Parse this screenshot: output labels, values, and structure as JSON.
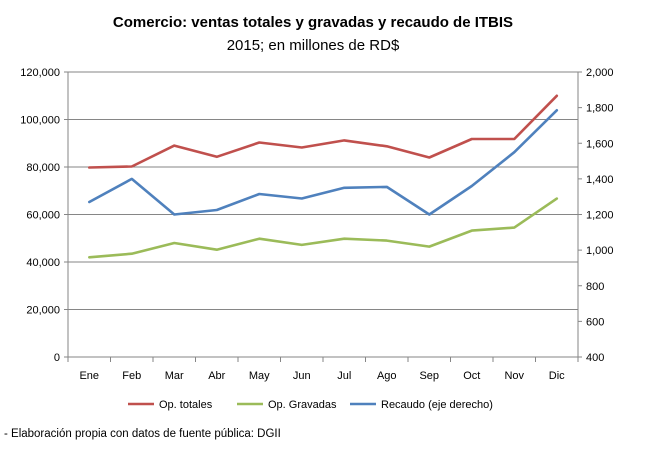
{
  "chart_data": {
    "type": "line",
    "title": "Comercio: ventas totales y gravadas y recaudo de ITBIS",
    "subtitle": "2015; en millones de RD$",
    "categories": [
      "Ene",
      "Feb",
      "Mar",
      "Abr",
      "May",
      "Jun",
      "Jul",
      "Ago",
      "Sep",
      "Oct",
      "Nov",
      "Dic"
    ],
    "series": [
      {
        "name": "Op. totales",
        "axis": "left",
        "color": "#c0504d",
        "values": [
          79800,
          80200,
          89000,
          84300,
          90300,
          88200,
          91200,
          88700,
          84000,
          91800,
          91800,
          110000
        ]
      },
      {
        "name": "Op. Gravadas",
        "axis": "left",
        "color": "#9bbb59",
        "values": [
          42000,
          43500,
          48000,
          45200,
          49800,
          47200,
          49800,
          49000,
          46500,
          53200,
          54500,
          66700
        ]
      },
      {
        "name": "Recaudo (eje derecho)",
        "axis": "right",
        "color": "#4f81bd",
        "values": [
          1270,
          1400,
          1200,
          1225,
          1315,
          1290,
          1350,
          1355,
          1200,
          1360,
          1550,
          1785
        ]
      }
    ],
    "ylim_left": [
      0,
      120000
    ],
    "yticks_left": [
      "0",
      "20,000",
      "40,000",
      "60,000",
      "80,000",
      "100,000",
      "120,000"
    ],
    "ylim_right": [
      400,
      2000
    ],
    "yticks_right": [
      "400",
      "600",
      "800",
      "1,000",
      "1,200",
      "1,400",
      "1,600",
      "1,800",
      "2,000"
    ],
    "grid": "horizontal",
    "legend_position": "bottom"
  },
  "footnote": "- Elaboración propia con datos de fuente pública: DGII"
}
